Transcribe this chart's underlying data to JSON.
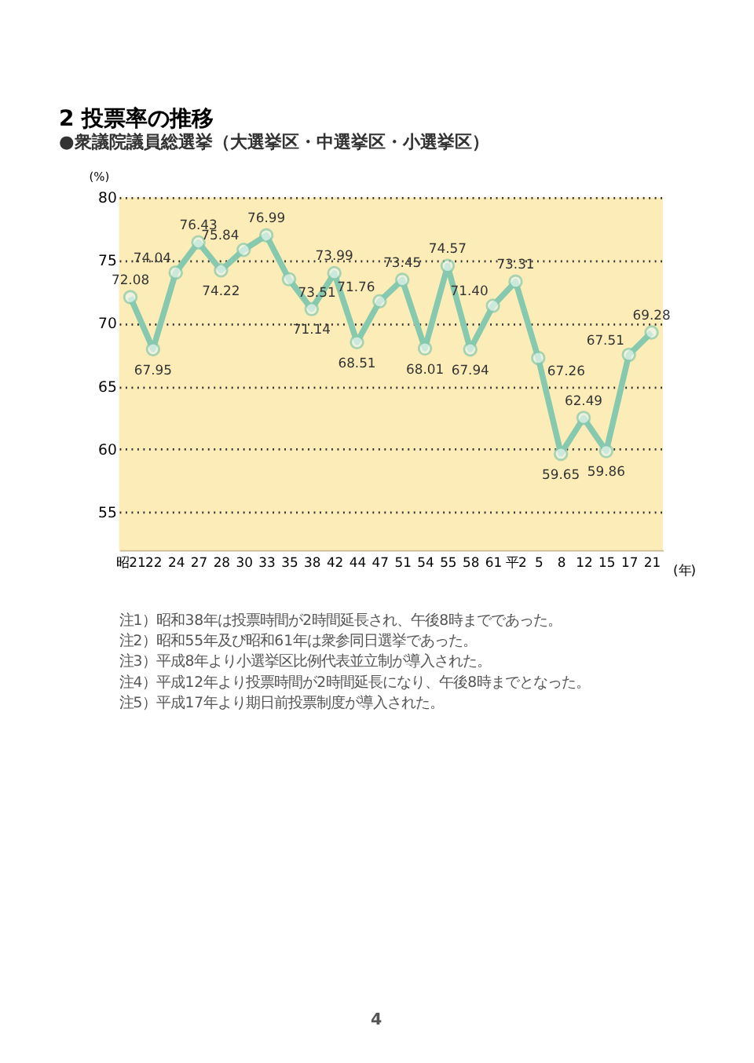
{
  "chart_data": {
    "type": "line",
    "title": "2 投票率の推移",
    "subtitle": "●衆議院議員総選挙（大選挙区・中選挙区・小選挙区）",
    "ylabel": "(%)",
    "xlabel": "(年)",
    "categories": [
      "昭21",
      "22",
      "24",
      "27",
      "28",
      "30",
      "33",
      "35",
      "38",
      "42",
      "44",
      "47",
      "51",
      "54",
      "55",
      "58",
      "61",
      "平2",
      "5",
      "8",
      "12",
      "15",
      "17",
      "21"
    ],
    "series": [
      {
        "color": "#86c9ae",
        "values": [
          72.08,
          67.95,
          74.04,
          76.43,
          74.22,
          75.84,
          76.99,
          73.51,
          71.14,
          73.99,
          68.51,
          71.76,
          73.45,
          68.01,
          74.57,
          67.94,
          71.4,
          73.31,
          67.26,
          59.65,
          62.49,
          59.86,
          67.51,
          69.28
        ],
        "value_labels": [
          "72.08",
          "67.95",
          "74.04",
          "76.43",
          "74.22",
          "75.84",
          "76.99",
          "73.51",
          "71.14",
          "73.99",
          "68.51",
          "71.76",
          "73.45",
          "68.01",
          "74.57",
          "67.94",
          "71.40",
          "73.31",
          "67.26",
          "59.65",
          "62.49",
          "59.86",
          "67.51",
          "69.28"
        ]
      }
    ],
    "ylim": [
      52,
      80
    ],
    "yticks": [
      55,
      60,
      65,
      70,
      75,
      80
    ],
    "grid": "y",
    "marker": "circle",
    "line_style": "solid",
    "annotations": [
      "注1）昭和38年は投票時間が2時間延長され、午後8時までであった。",
      "注2）昭和55年及び昭和61年は衆参同日選挙であった。",
      "注3）平成8年より小選挙区比例代表並立制が導入された。",
      "注4）平成12年より投票時間が2時間延長になり、午後8時までとなった。",
      "注5）平成17年より期日前投票制度が導入された。",
      "4"
    ]
  }
}
